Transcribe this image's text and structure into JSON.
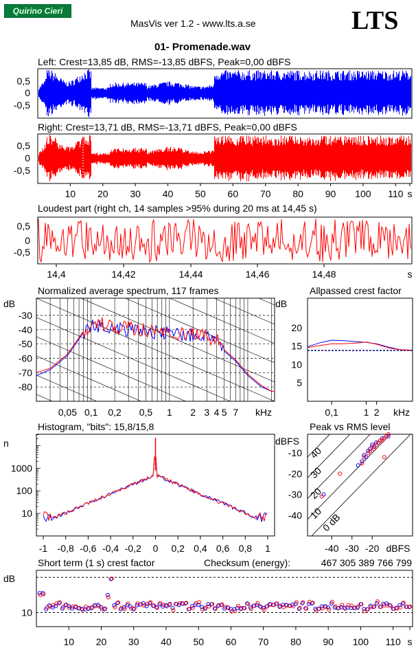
{
  "header": {
    "badge": "Quirino Cieri",
    "app": "MasVis ver 1.2 - www.lts.a.se",
    "logo": "LTS",
    "file": "01- Promenade.wav"
  },
  "colors": {
    "left": "#0000ff",
    "right": "#ff0000",
    "accent": "#0a7a3a"
  },
  "chart_data": [
    {
      "type": "line",
      "id": "left",
      "title": "Left: Crest=13,85 dB, RMS=-13,85 dBFS, Peak=0,00 dBFS",
      "yticks": [
        "0,5",
        "0",
        "-0,5"
      ],
      "duration_s": 115
    },
    {
      "type": "line",
      "id": "right",
      "title": "Right: Crest=13,71 dB, RMS=-13,71 dBFS, Peak=0,00 dBFS",
      "yticks": [
        "0,5",
        "0",
        "-0,5"
      ],
      "xticks": [
        "10",
        "20",
        "30",
        "40",
        "50",
        "60",
        "70",
        "80",
        "90",
        "100",
        "110",
        "s"
      ],
      "marker_s": 14.45
    },
    {
      "type": "line",
      "id": "loudest",
      "title": "Loudest part (right ch, 14 samples >95% during 20 ms at 14,45 s)",
      "yticks": [
        "0,5",
        "0",
        "-0,5"
      ],
      "xticks": [
        "14,4",
        "14,42",
        "14,44",
        "14,46",
        "14,48",
        "s"
      ]
    },
    {
      "type": "line",
      "id": "spectrum",
      "title": "Normalized average spectrum, 117 frames",
      "ylabel": "dB",
      "yticks": [
        "-30",
        "-40",
        "-50",
        "-60",
        "-70",
        "-80"
      ],
      "xticks": [
        "0,05",
        "0,1",
        "0,2",
        "0,5",
        "1",
        "2",
        "3",
        "4",
        "5",
        "7",
        "kHz"
      ],
      "series": [
        {
          "name": "left",
          "x": [
            0.02,
            0.03,
            0.05,
            0.08,
            0.1,
            0.15,
            0.2,
            0.3,
            0.5,
            0.7,
            1,
            2,
            3,
            4,
            5,
            7,
            10,
            15,
            20
          ],
          "y": [
            -72,
            -68,
            -58,
            -42,
            -38,
            -37,
            -39,
            -40,
            -41,
            -42,
            -43,
            -44,
            -45,
            -48,
            -55,
            -62,
            -72,
            -80,
            -83
          ]
        },
        {
          "name": "right",
          "x": [
            0.02,
            0.03,
            0.05,
            0.08,
            0.1,
            0.15,
            0.2,
            0.3,
            0.5,
            0.7,
            1,
            2,
            3,
            4,
            5,
            7,
            10,
            15,
            20
          ],
          "y": [
            -70,
            -67,
            -57,
            -41,
            -37,
            -36,
            -38,
            -39,
            -40,
            -41,
            -42,
            -43,
            -45,
            -47,
            -54,
            -61,
            -71,
            -79,
            -83
          ]
        }
      ]
    },
    {
      "type": "line",
      "id": "allpass",
      "title": "Allpassed crest factor",
      "ylabel": "dB",
      "yticks": [
        "20",
        "15",
        "10",
        "5"
      ],
      "xticks": [
        "0,1",
        "1",
        "2",
        "kHz"
      ],
      "series": [
        {
          "name": "left",
          "x": [
            0.02,
            0.05,
            0.1,
            0.2,
            0.5,
            1,
            2,
            5,
            10,
            20
          ],
          "y": [
            14.8,
            16.0,
            16.6,
            16.5,
            16.2,
            16.0,
            15.6,
            14.6,
            14.0,
            13.9
          ]
        },
        {
          "name": "right",
          "x": [
            0.02,
            0.05,
            0.1,
            0.2,
            0.5,
            1,
            2,
            5,
            10,
            20
          ],
          "y": [
            14.6,
            15.2,
            15.6,
            15.6,
            15.8,
            16.1,
            15.5,
            14.4,
            14.0,
            13.8
          ]
        }
      ],
      "reference": 13.8
    },
    {
      "type": "line",
      "id": "histogram",
      "title": "Histogram, \"bits\": 15,8/15,8",
      "ylabel": "n",
      "yticks": [
        "1000",
        "100",
        "10"
      ],
      "xticks": [
        "-1",
        "-0,8",
        "-0,6",
        "-0,4",
        "-0,2",
        "0",
        "0,2",
        "0,4",
        "0,6",
        "0,8",
        "1"
      ]
    },
    {
      "type": "scatter",
      "id": "peakrms",
      "title": "Peak vs RMS level",
      "ylabel": "dBFS",
      "yticks": [
        "-10",
        "-20",
        "-30",
        "-40"
      ],
      "xticks": [
        "-40",
        "-30",
        "-20",
        "dBFS"
      ],
      "diag_labels": [
        "40",
        "30",
        "20",
        "10",
        "0 dB"
      ],
      "series": [
        {
          "name": "left",
          "points": [
            [
              -24,
              -11
            ],
            [
              -22,
              -9
            ],
            [
              -20,
              -6
            ],
            [
              -18,
              -5
            ],
            [
              -16,
              -4
            ],
            [
              -14,
              -3
            ],
            [
              -13,
              -2
            ],
            [
              -15,
              -3
            ],
            [
              -21,
              -8
            ],
            [
              -25,
              -14
            ],
            [
              -19,
              -7
            ],
            [
              -17,
              -5
            ],
            [
              -12,
              -2
            ],
            [
              -23,
              -12
            ],
            [
              -27,
              -16
            ],
            [
              -44,
              -30
            ]
          ]
        },
        {
          "name": "right",
          "points": [
            [
              -24,
              -12
            ],
            [
              -22,
              -10
            ],
            [
              -20,
              -7
            ],
            [
              -18,
              -6
            ],
            [
              -16,
              -4
            ],
            [
              -14,
              -3
            ],
            [
              -13,
              -2
            ],
            [
              -15,
              -4
            ],
            [
              -21,
              -9
            ],
            [
              -25,
              -15
            ],
            [
              -19,
              -8
            ],
            [
              -17,
              -5
            ],
            [
              -12,
              -1
            ],
            [
              -36,
              -20
            ],
            [
              -45,
              -31
            ],
            [
              -14,
              -12
            ]
          ]
        }
      ]
    },
    {
      "type": "scatter",
      "id": "crest",
      "title": "Short term (1 s) crest factor",
      "ylabel": "dB",
      "yticks": [
        "10"
      ],
      "xticks": [
        "10",
        "20",
        "30",
        "40",
        "50",
        "60",
        "70",
        "80",
        "90",
        "100",
        "110",
        "s"
      ],
      "checksum_label": "Checksum (energy):",
      "checksum": "467 305 389 766 799"
    }
  ]
}
